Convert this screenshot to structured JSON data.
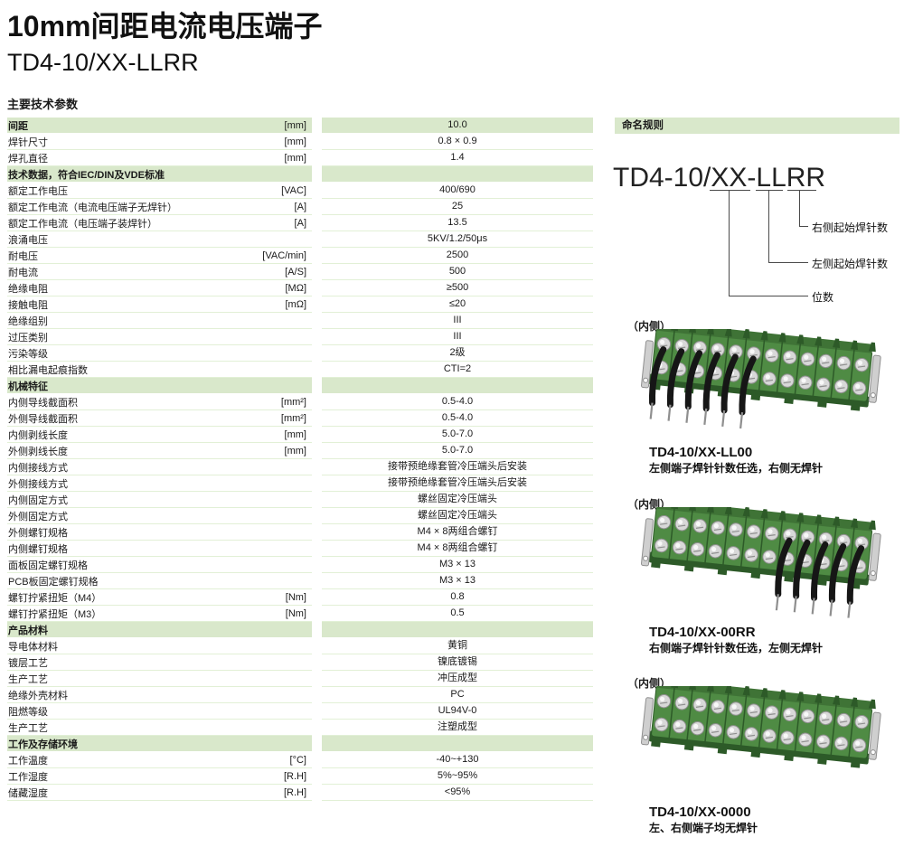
{
  "page": {
    "title": "10mm间距电流电压端子",
    "subtitle": "TD4-10/XX-LLRR",
    "section_title": "主要技术参数"
  },
  "colors": {
    "header_green": "#d9e8cb",
    "row_line": "#e2f0d6",
    "block_green": "#4f8b44",
    "block_mid": "#3f7336",
    "block_dark": "#2d5a28",
    "screw_fill": "#d8d8d8",
    "screw_edge": "#8f8f8f",
    "pin_black": "#161616",
    "metal": "#cfcfcf"
  },
  "spec_table": {
    "rows": [
      {
        "type": "header",
        "label": "间距",
        "unit": "[mm]",
        "value": "10.0"
      },
      {
        "type": "row",
        "label": "焊针尺寸",
        "unit": "[mm]",
        "value": "0.8 × 0.9"
      },
      {
        "type": "row",
        "label": "焊孔直径",
        "unit": "[mm]",
        "value": "1.4"
      },
      {
        "type": "section",
        "label": "技术数据，符合IEC/DIN及VDE标准",
        "unit": "",
        "value": ""
      },
      {
        "type": "row",
        "label": "额定工作电压",
        "unit": "[VAC]",
        "value": "400/690"
      },
      {
        "type": "row",
        "label": "额定工作电流（电流电压端子无焊针）",
        "unit": "[A]",
        "value": "25"
      },
      {
        "type": "row",
        "label": "额定工作电流（电压端子装焊针）",
        "unit": "[A]",
        "value": "13.5"
      },
      {
        "type": "row",
        "label": "浪涌电压",
        "unit": "",
        "value": "5KV/1.2/50μs"
      },
      {
        "type": "row",
        "label": "耐电压",
        "unit": "[VAC/min]",
        "value": "2500"
      },
      {
        "type": "row",
        "label": "耐电流",
        "unit": "[A/S]",
        "value": "500"
      },
      {
        "type": "row",
        "label": "绝缘电阻",
        "unit": "[MΩ]",
        "value": "≥500"
      },
      {
        "type": "row",
        "label": "接触电阻",
        "unit": "[mΩ]",
        "value": "≤20"
      },
      {
        "type": "row",
        "label": "绝缘组别",
        "unit": "",
        "value": "III"
      },
      {
        "type": "row",
        "label": "过压类别",
        "unit": "",
        "value": "III"
      },
      {
        "type": "row",
        "label": "污染等级",
        "unit": "",
        "value": "2级"
      },
      {
        "type": "row",
        "label": "相比漏电起痕指数",
        "unit": "",
        "value": "CTI=2"
      },
      {
        "type": "section",
        "label": "机械特征",
        "unit": "",
        "value": ""
      },
      {
        "type": "row",
        "label": "内侧导线截面积",
        "unit": "[mm²]",
        "value": "0.5-4.0"
      },
      {
        "type": "row",
        "label": "外侧导线截面积",
        "unit": "[mm²]",
        "value": "0.5-4.0"
      },
      {
        "type": "row",
        "label": "内侧剥线长度",
        "unit": "[mm]",
        "value": "5.0-7.0"
      },
      {
        "type": "row",
        "label": "外侧剥线长度",
        "unit": "[mm]",
        "value": "5.0-7.0"
      },
      {
        "type": "row",
        "label": "内侧接线方式",
        "unit": "",
        "value": "接带预绝缘套管冷压端头后安装"
      },
      {
        "type": "row",
        "label": "外侧接线方式",
        "unit": "",
        "value": "接带预绝缘套管冷压端头后安装"
      },
      {
        "type": "row",
        "label": "内侧固定方式",
        "unit": "",
        "value": "螺丝固定冷压端头"
      },
      {
        "type": "row",
        "label": "外侧固定方式",
        "unit": "",
        "value": "螺丝固定冷压端头"
      },
      {
        "type": "row",
        "label": "外侧螺钉规格",
        "unit": "",
        "value": "M4 × 8两组合螺钉"
      },
      {
        "type": "row",
        "label": "内侧螺钉规格",
        "unit": "",
        "value": "M4 × 8两组合螺钉"
      },
      {
        "type": "row",
        "label": "面板固定螺钉规格",
        "unit": "",
        "value": "M3 × 13"
      },
      {
        "type": "row",
        "label": "PCB板固定螺钉规格",
        "unit": "",
        "value": "M3 × 13"
      },
      {
        "type": "row",
        "label": "螺钉拧紧扭矩（M4）",
        "unit": "[Nm]",
        "value": "0.8"
      },
      {
        "type": "row",
        "label": "螺钉拧紧扭矩（M3）",
        "unit": "[Nm]",
        "value": "0.5"
      },
      {
        "type": "section",
        "label": "产品材料",
        "unit": "",
        "value": ""
      },
      {
        "type": "row",
        "label": "导电体材料",
        "unit": "",
        "value": "黄铜"
      },
      {
        "type": "row",
        "label": "镀层工艺",
        "unit": "",
        "value": "镍底镀锡"
      },
      {
        "type": "row",
        "label": "生产工艺",
        "unit": "",
        "value": "冲压成型"
      },
      {
        "type": "row",
        "label": "绝缘外壳材料",
        "unit": "",
        "value": "PC"
      },
      {
        "type": "row",
        "label": "阻燃等级",
        "unit": "",
        "value": "UL94V-0"
      },
      {
        "type": "row",
        "label": "生产工艺",
        "unit": "",
        "value": "注塑成型"
      },
      {
        "type": "section",
        "label": "工作及存储环境",
        "unit": "",
        "value": ""
      },
      {
        "type": "row",
        "label": "工作温度",
        "unit": "[°C]",
        "value": "-40~+130"
      },
      {
        "type": "row",
        "label": "工作湿度",
        "unit": "[R.H]",
        "value": "5%~95%"
      },
      {
        "type": "row",
        "label": "储藏湿度",
        "unit": "[R.H]",
        "value": "<95%"
      }
    ]
  },
  "naming": {
    "header": "命名规则",
    "model": "TD4-10/XX-LLRR",
    "labels": {
      "rr": "右侧起始焊针数",
      "ll": "左侧起始焊针数",
      "xx": "位数"
    }
  },
  "products": [
    {
      "view_label": "（内侧）",
      "model": "TD4-10/XX-LL00",
      "desc": "左侧端子焊针针数任选，右侧无焊针",
      "pins": [
        0,
        1,
        2,
        3,
        4,
        5
      ]
    },
    {
      "view_label": "（内侧）",
      "model": "TD4-10/XX-00RR",
      "desc": "右侧端子焊针针数任选，左侧无焊针",
      "pins": [
        7,
        8,
        9,
        10,
        11
      ]
    },
    {
      "view_label": "（内侧）",
      "model": "TD4-10/XX-0000",
      "desc": "左、右侧端子均无焊针",
      "pins": []
    }
  ]
}
